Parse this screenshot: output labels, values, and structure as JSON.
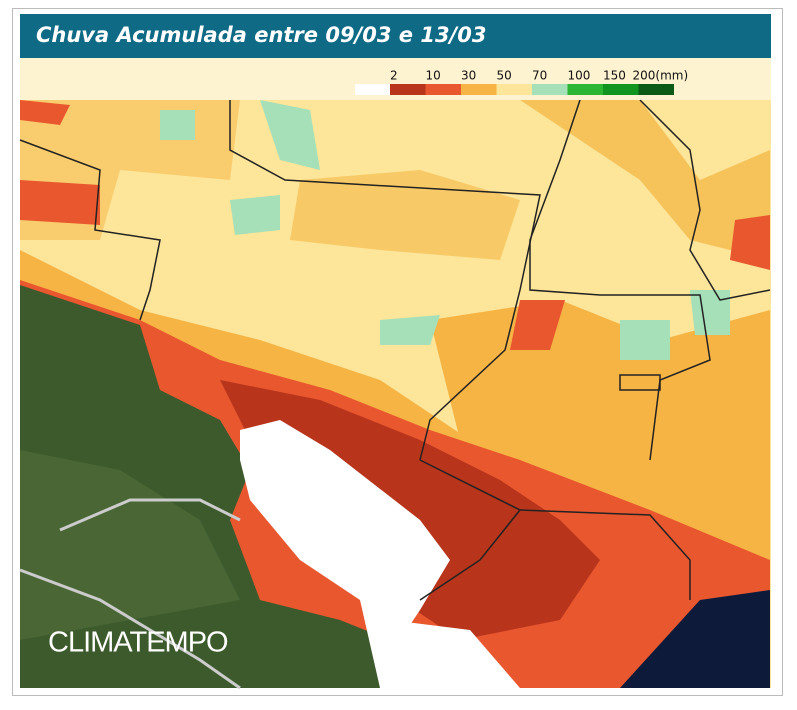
{
  "header": {
    "title": "Chuva Acumulada entre 09/03 e 13/03"
  },
  "legend": {
    "labels": [
      "2",
      "10",
      "30",
      "50",
      "70",
      "100",
      "150",
      "200(mm)"
    ],
    "colors": [
      "#b8341b",
      "#e9572f",
      "#f6b444",
      "#fde59a",
      "#a6e0b8",
      "#2db534",
      "#129420",
      "#0b5a16"
    ]
  },
  "watermark": "CLIMATEMPO"
}
